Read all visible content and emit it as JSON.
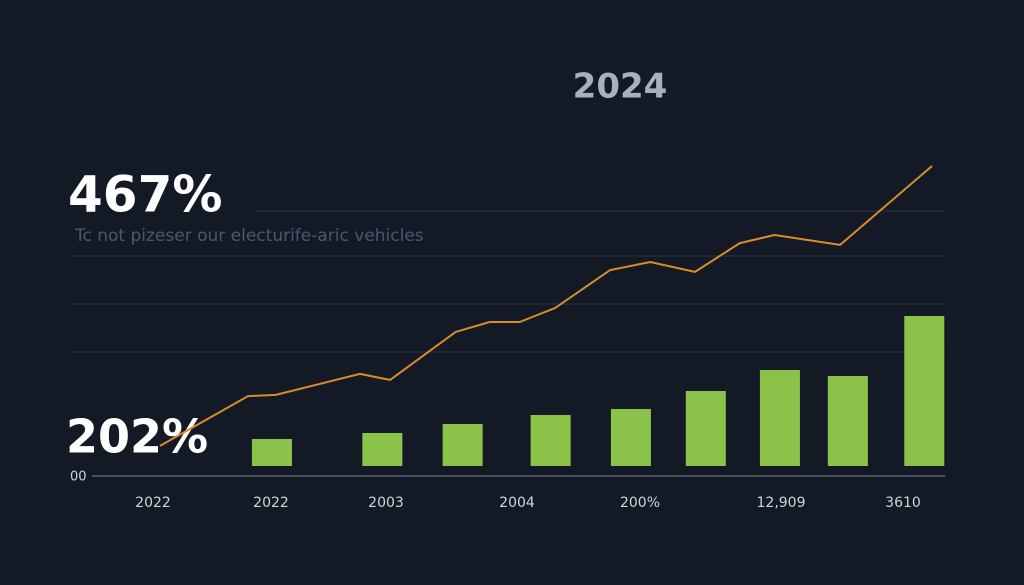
{
  "chart_data": {
    "type": "bar_line",
    "title": "2024",
    "annotations": [
      "467%",
      "Tc not pizeser our electurife-aric vehicles",
      "202%",
      "00"
    ],
    "x_labels": [
      "2022",
      "2022",
      "2003",
      "2004",
      "200%",
      "12,909",
      "3610"
    ],
    "xlim": [
      0,
      100
    ],
    "ylim": [
      0,
      100
    ],
    "gridlines": [
      85,
      70,
      54,
      38
    ],
    "bars": {
      "color": "#8bc34a",
      "x": [
        14.5,
        28.8,
        39.2,
        50.6,
        61,
        70.7,
        80.3,
        89.1,
        99
      ],
      "values": [
        9,
        11,
        14,
        17,
        19,
        25,
        32,
        30,
        50
      ]
    },
    "line": {
      "color": "#d98a2b",
      "x": [
        0,
        11.4,
        15,
        25.9,
        29.8,
        38.3,
        42.7,
        46.6,
        51.2,
        58.3,
        63.5,
        69.3,
        75.1,
        79.6,
        88.1,
        100
      ],
      "values": [
        6.7,
        23.3,
        23.7,
        30.7,
        28.7,
        44.7,
        48,
        48,
        52.7,
        65.3,
        68,
        64.7,
        74.3,
        77,
        73.7,
        100
      ]
    }
  }
}
